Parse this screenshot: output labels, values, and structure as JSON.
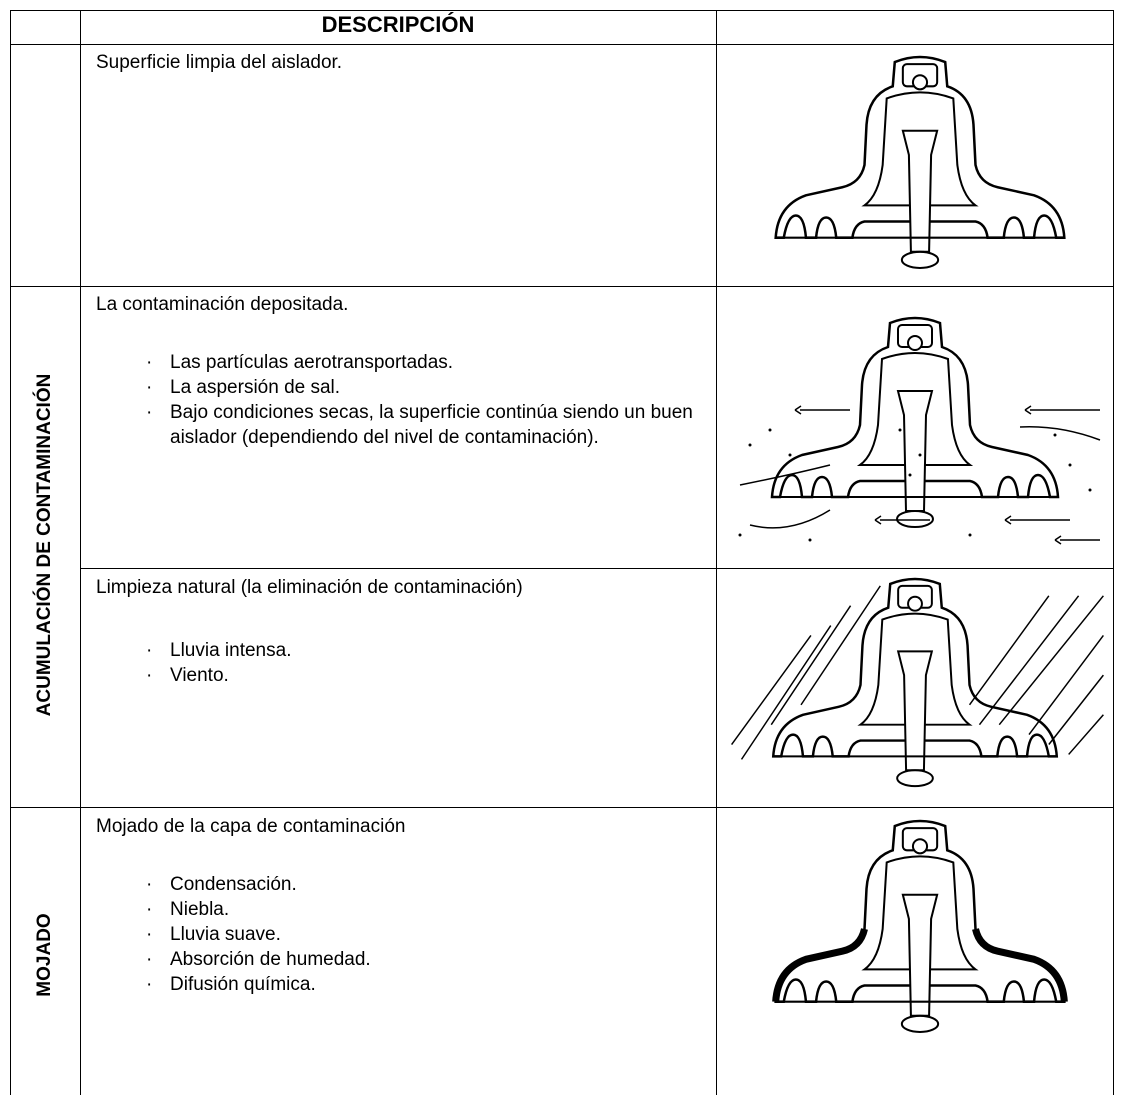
{
  "table": {
    "header": "DESCRIPCIÓN",
    "groups": [
      "ACUMULACIÓN DE CONTAMINACIÓN",
      "MOJADO"
    ],
    "rows": [
      {
        "text": "Superficie limpia del aislador."
      },
      {
        "text": "La contaminación depositada.",
        "items": [
          "Las partículas aerotransportadas.",
          "La aspersión de sal.",
          "Bajo condiciones secas, la superficie continúa siendo un buen aislador (dependiendo del nivel de contaminación)."
        ]
      },
      {
        "text": "Limpieza natural (la eliminación de contaminación)",
        "items": [
          "Lluvia intensa.",
          "Viento."
        ]
      },
      {
        "text": "Mojado de la capa de contaminación",
        "items": [
          "Condensación.",
          "Niebla.",
          "Lluvia suave.",
          "Absorción de humedad.",
          "Difusión química."
        ]
      }
    ]
  }
}
